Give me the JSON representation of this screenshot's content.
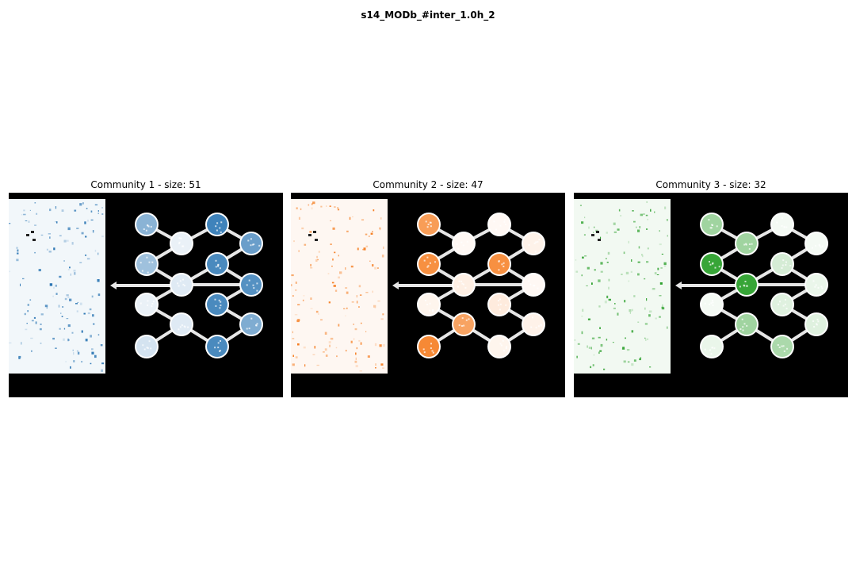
{
  "figure": {
    "title": "s14_MODb_#inter_1.0h_2"
  },
  "panels": [
    {
      "title": "Community 1 - size: 51",
      "color": "#2a75b3",
      "colormap": "Blues",
      "node_intensity": [
        0.55,
        0.1,
        0.45,
        0.15,
        0.1,
        0.15,
        0.2,
        0.9,
        0.7,
        0.85,
        0.8,
        0.85,
        0.6,
        0.85
      ]
    },
    {
      "title": "Community 2 - size: 47",
      "color": "#f57c1f",
      "colormap": "Oranges",
      "node_intensity": [
        0.75,
        0.05,
        0.85,
        0.12,
        0.08,
        0.7,
        0.9,
        0.05,
        0.1,
        0.85,
        0.05,
        0.15,
        0.1,
        0.08
      ]
    },
    {
      "title": "Community 3 - size: 32",
      "color": "#2ca02c",
      "colormap": "Greens",
      "node_intensity": [
        0.45,
        0.45,
        0.95,
        0.95,
        0.05,
        0.45,
        0.1,
        0.05,
        0.05,
        0.2,
        0.1,
        0.15,
        0.15,
        0.4
      ]
    }
  ]
}
